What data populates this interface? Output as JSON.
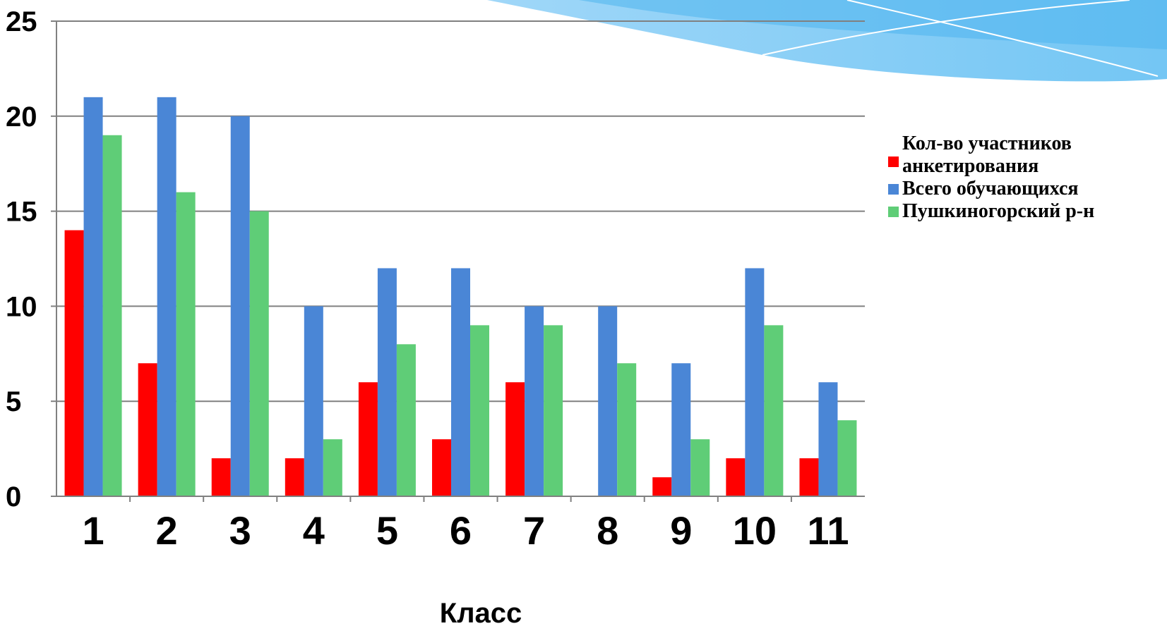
{
  "chart_data": {
    "type": "bar",
    "categories": [
      "1",
      "2",
      "3",
      "4",
      "5",
      "6",
      "7",
      "8",
      "9",
      "10",
      "11"
    ],
    "series": [
      {
        "name": "Кол-во участников анкетирования",
        "color": "#ff0000",
        "values": [
          14,
          7,
          2,
          2,
          6,
          3,
          6,
          0,
          1,
          2,
          2
        ]
      },
      {
        "name": "Всего обучающихся",
        "color": "#4a86d6",
        "values": [
          21,
          21,
          20,
          10,
          12,
          12,
          10,
          10,
          7,
          12,
          6
        ]
      },
      {
        "name": "Пушкиногорский р-н",
        "color": "#5fcd77",
        "values": [
          19,
          16,
          15,
          3,
          8,
          9,
          9,
          7,
          3,
          9,
          4
        ]
      }
    ],
    "title": "",
    "xlabel": "Класс",
    "ylabel": "",
    "ylim": [
      0,
      25
    ],
    "yticks": [
      "0",
      "5",
      "10",
      "15",
      "20",
      "25"
    ],
    "grid": true,
    "legend_position": "right"
  }
}
